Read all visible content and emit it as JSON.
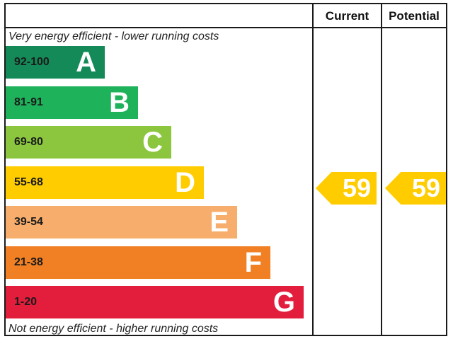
{
  "headers": {
    "current": "Current",
    "potential": "Potential"
  },
  "top_caption": "Very energy efficient - lower running costs",
  "bottom_caption": "Not energy efficient - higher running costs",
  "chart_data": {
    "type": "bar",
    "categories": [
      "A",
      "B",
      "C",
      "D",
      "E",
      "F",
      "G"
    ],
    "bands": [
      {
        "letter": "A",
        "range": "92-100",
        "color": "#138a57"
      },
      {
        "letter": "B",
        "range": "81-91",
        "color": "#1eb25a"
      },
      {
        "letter": "C",
        "range": "69-80",
        "color": "#8cc63f"
      },
      {
        "letter": "D",
        "range": "55-68",
        "color": "#ffcc00"
      },
      {
        "letter": "E",
        "range": "39-54",
        "color": "#f7ad6b"
      },
      {
        "letter": "F",
        "range": "21-38",
        "color": "#f08023"
      },
      {
        "letter": "G",
        "range": "1-20",
        "color": "#e31d3c"
      }
    ],
    "current": {
      "value": 59,
      "label": "59",
      "band": "D"
    },
    "potential": {
      "value": 59,
      "label": "59",
      "band": "D"
    },
    "arrow_color": "#ffcc00"
  }
}
